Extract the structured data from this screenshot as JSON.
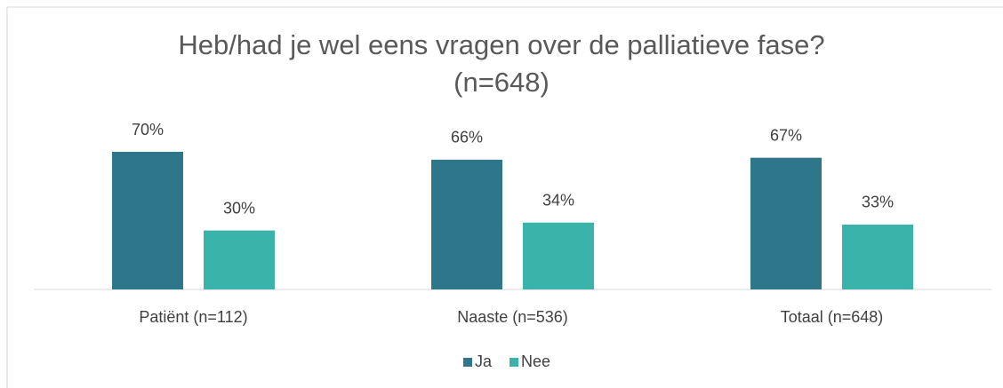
{
  "chart_data": {
    "type": "bar",
    "title": "Heb/had je wel eens vragen over de palliatieve fase? (n=648)",
    "categories": [
      "Patiënt (n=112)",
      "Naaste (n=536)",
      "Totaal (n=648)"
    ],
    "series": [
      {
        "name": "Ja",
        "color": "#2e7689",
        "values": [
          70,
          66,
          67
        ],
        "value_labels": [
          "70%",
          "66%",
          "67%"
        ]
      },
      {
        "name": "Nee",
        "color": "#3ab3aa",
        "values": [
          30,
          34,
          33
        ],
        "value_labels": [
          "30%",
          "34%",
          "33%"
        ]
      }
    ],
    "legend": "bottom"
  }
}
